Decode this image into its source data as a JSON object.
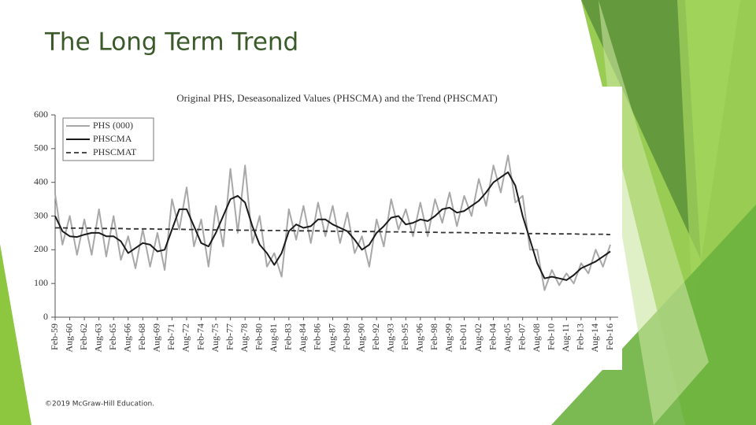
{
  "slide": {
    "title": "The Long Term Trend",
    "footer": "©2019 McGraw-Hill Education."
  },
  "chart_data": {
    "type": "line",
    "title": "Original PHS, Deseasonalized Values (PHSCMA) and the Trend (PHSCMAT)",
    "categories": [
      "Feb-59",
      null,
      "Aug-60",
      null,
      "Feb-62",
      null,
      "Aug-63",
      null,
      "Feb-65",
      null,
      "Aug-66",
      null,
      "Feb-68",
      null,
      "Aug-69",
      null,
      "Feb-71",
      null,
      "Aug-72",
      null,
      "Feb-74",
      null,
      "Aug-75",
      null,
      "Feb-77",
      null,
      "Aug-78",
      null,
      "Feb-80",
      null,
      "Aug-81",
      null,
      "Feb-83",
      null,
      "Aug-84",
      null,
      "Feb-86",
      null,
      "Aug-87",
      null,
      "Feb-89",
      null,
      "Aug-90",
      null,
      "Feb-92",
      null,
      "Aug-93",
      null,
      "Feb-95",
      null,
      "Aug-96",
      null,
      "Feb-98",
      null,
      "Aug-99",
      null,
      "Feb-01",
      null,
      "Aug-02",
      null,
      "Feb-04",
      null,
      "Aug-05",
      null,
      "Feb-07",
      null,
      "Aug-08",
      null,
      "Feb-10",
      null,
      "Aug-11",
      null,
      "Feb-13",
      null,
      "Aug-14",
      null,
      "Feb-16"
    ],
    "series": [
      {
        "name": "PHS (000)",
        "color": "#a8a8a8",
        "linestyle": "solid",
        "width": 2,
        "values": [
          365,
          215,
          300,
          185,
          290,
          185,
          320,
          180,
          300,
          170,
          240,
          145,
          260,
          150,
          250,
          140,
          350,
          260,
          385,
          210,
          290,
          150,
          330,
          210,
          440,
          250,
          450,
          220,
          300,
          150,
          190,
          120,
          320,
          230,
          330,
          220,
          340,
          240,
          330,
          220,
          310,
          190,
          240,
          150,
          290,
          210,
          350,
          260,
          320,
          240,
          340,
          240,
          350,
          280,
          370,
          270,
          360,
          300,
          410,
          330,
          450,
          370,
          480,
          340,
          360,
          200,
          200,
          80,
          140,
          95,
          130,
          100,
          160,
          130,
          200,
          150,
          215
        ]
      },
      {
        "name": "PHSCMA",
        "color": "#1a1a1a",
        "linestyle": "solid",
        "width": 2,
        "values": [
          300,
          255,
          240,
          238,
          245,
          250,
          250,
          240,
          240,
          225,
          190,
          205,
          220,
          215,
          195,
          200,
          260,
          320,
          320,
          270,
          220,
          210,
          250,
          300,
          350,
          360,
          340,
          270,
          215,
          190,
          155,
          190,
          255,
          275,
          265,
          270,
          290,
          290,
          275,
          265,
          255,
          230,
          200,
          215,
          250,
          270,
          295,
          300,
          275,
          280,
          290,
          285,
          300,
          320,
          325,
          310,
          315,
          330,
          345,
          370,
          400,
          415,
          430,
          390,
          300,
          230,
          160,
          115,
          120,
          115,
          110,
          125,
          145,
          155,
          165,
          180,
          195
        ]
      },
      {
        "name": "PHSCMAT",
        "color": "#333333",
        "linestyle": "dashed",
        "width": 1.8,
        "values": [
          265,
          265,
          264,
          264,
          264,
          264,
          263,
          263,
          263,
          263,
          262,
          262,
          262,
          262,
          261,
          261,
          261,
          261,
          260,
          260,
          260,
          259,
          259,
          259,
          259,
          258,
          258,
          258,
          258,
          257,
          257,
          257,
          257,
          256,
          256,
          256,
          256,
          255,
          255,
          255,
          255,
          254,
          254,
          254,
          254,
          253,
          253,
          253,
          253,
          252,
          252,
          252,
          252,
          251,
          251,
          251,
          251,
          250,
          250,
          250,
          250,
          249,
          249,
          249,
          248,
          248,
          248,
          248,
          247,
          247,
          247,
          247,
          246,
          246,
          246,
          246,
          245
        ]
      }
    ],
    "ylim": [
      0,
      600
    ],
    "yticks": [
      0,
      100,
      200,
      300,
      400,
      500,
      600
    ],
    "grid": false,
    "legend": "upper-left"
  }
}
